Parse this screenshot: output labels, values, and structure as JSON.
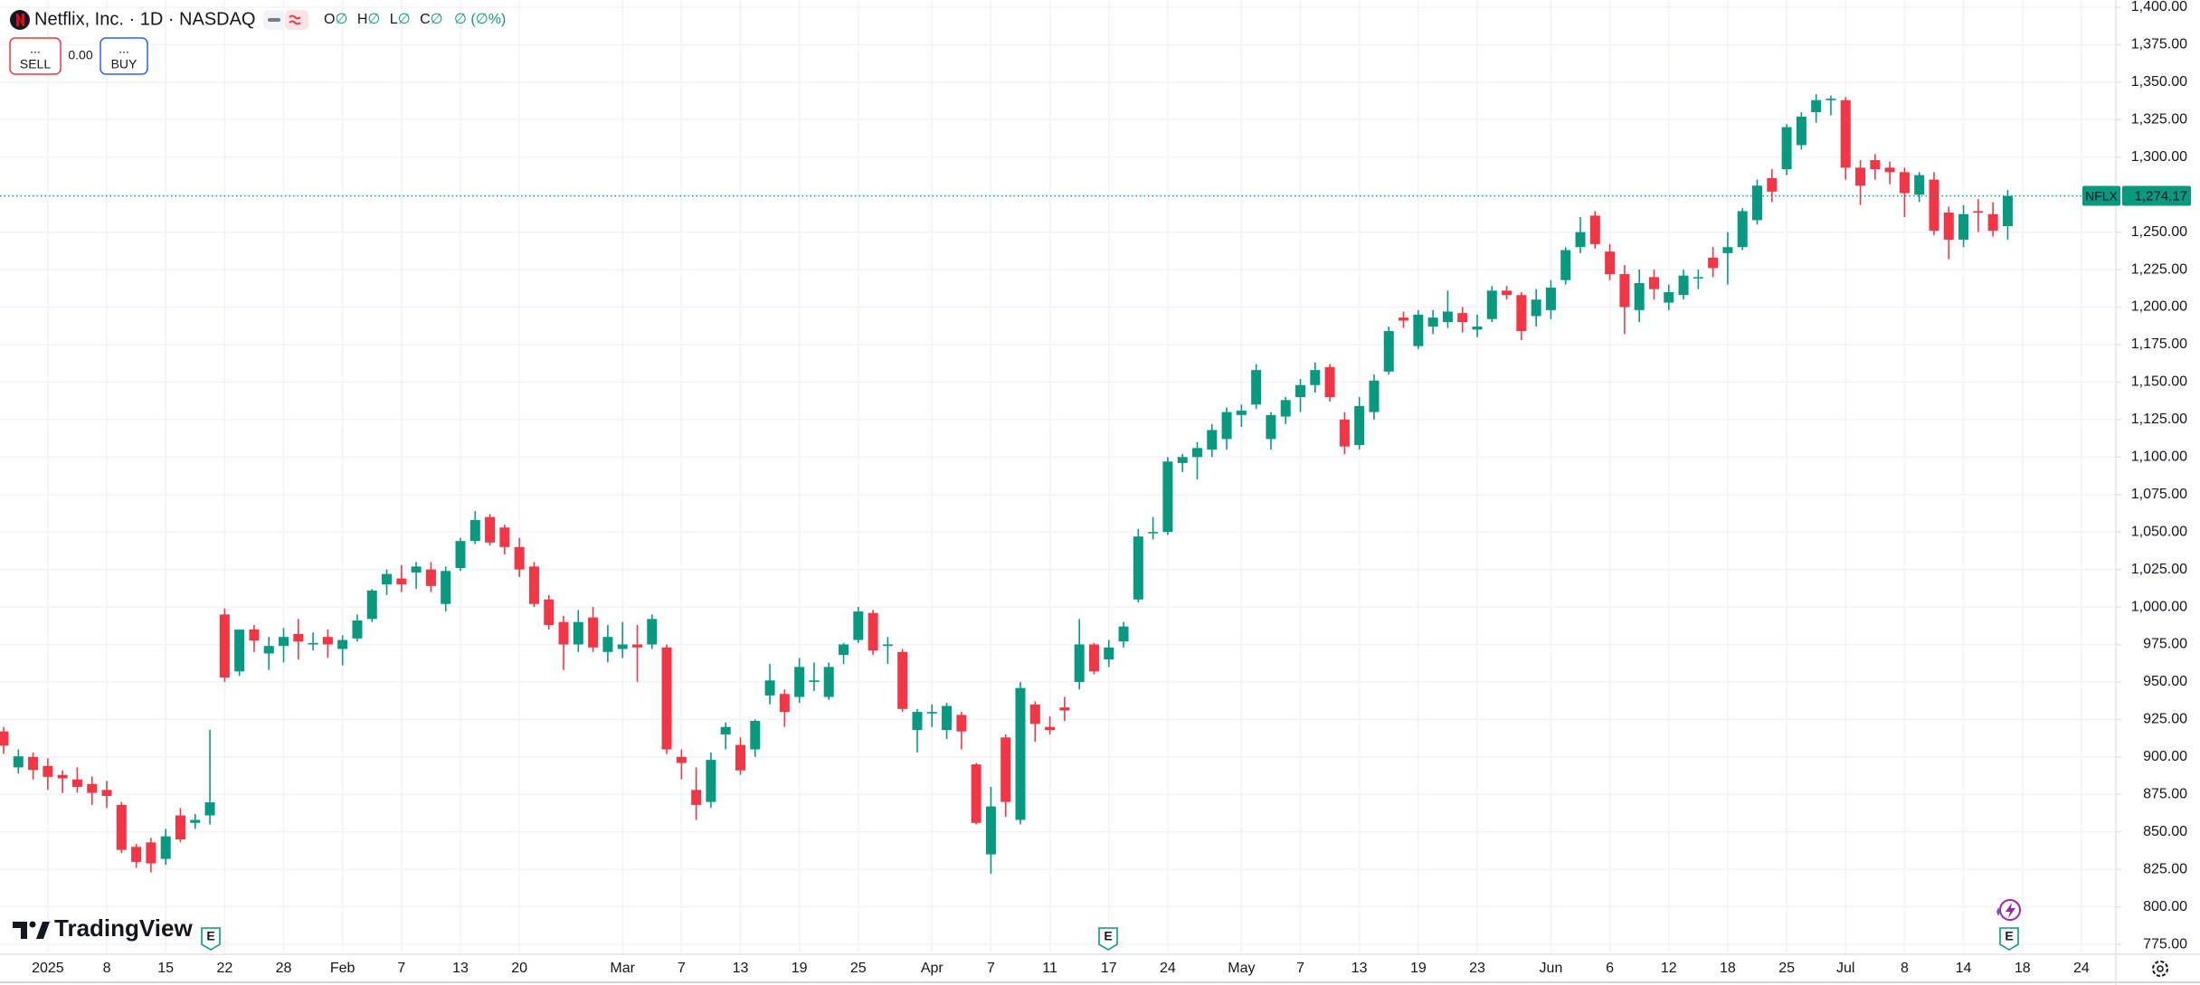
{
  "header": {
    "title": "Netflix, Inc. · 1D · NASDAQ",
    "ohlc_labels": [
      "O",
      "H",
      "L",
      "C"
    ],
    "ohlc_value": "∅",
    "change": "∅ (∅%)",
    "sell_price": "...",
    "sell": "SELL",
    "spread": "0.00",
    "buy_price": "...",
    "buy": "BUY",
    "brand": "TradingView"
  },
  "chart_data": {
    "type": "candlestick",
    "up_color": "#089981",
    "down_color": "#f23645",
    "grid": true,
    "symbol": "NFLX",
    "last_price": {
      "value": 1274.17,
      "label": "1,274.17"
    },
    "earnings": [
      "E",
      "E",
      "E"
    ],
    "ylim": [
      768.4,
      1404.8
    ],
    "yticks": [
      {
        "value": 775,
        "label": "775.00"
      },
      {
        "value": 800,
        "label": "800.00"
      },
      {
        "value": 825,
        "label": "825.00"
      },
      {
        "value": 850,
        "label": "850.00"
      },
      {
        "value": 875,
        "label": "875.00"
      },
      {
        "value": 900,
        "label": "900.00"
      },
      {
        "value": 925,
        "label": "925.00"
      },
      {
        "value": 950,
        "label": "950.00"
      },
      {
        "value": 975,
        "label": "975.00"
      },
      {
        "value": 1000,
        "label": "1,000.00"
      },
      {
        "value": 1025,
        "label": "1,025.00"
      },
      {
        "value": 1050,
        "label": "1,050.00"
      },
      {
        "value": 1075,
        "label": "1,075.00"
      },
      {
        "value": 1100,
        "label": "1,100.00"
      },
      {
        "value": 1125,
        "label": "1,125.00"
      },
      {
        "value": 1150,
        "label": "1,150.00"
      },
      {
        "value": 1175,
        "label": "1,175.00"
      },
      {
        "value": 1200,
        "label": "1,200.00"
      },
      {
        "value": 1225,
        "label": "1,225.00"
      },
      {
        "value": 1250,
        "label": "1,250.00"
      },
      {
        "value": 1275,
        "label": "1,275.00"
      },
      {
        "value": 1300,
        "label": "1,300.00"
      },
      {
        "value": 1325,
        "label": "1,325.00"
      },
      {
        "value": 1350,
        "label": "1,350.00"
      },
      {
        "value": 1375,
        "label": "1,375.00"
      },
      {
        "value": 1400,
        "label": "1,400.00"
      }
    ],
    "categories": [
      null,
      null,
      null,
      "2025",
      null,
      null,
      null,
      "8",
      null,
      null,
      null,
      "15",
      null,
      null,
      null,
      "22",
      null,
      null,
      null,
      "28",
      null,
      null,
      null,
      "Feb",
      null,
      null,
      null,
      "7",
      null,
      null,
      null,
      "13",
      null,
      null,
      null,
      "20",
      null,
      null,
      null,
      null,
      null,
      null,
      "Mar",
      null,
      null,
      null,
      "7",
      null,
      null,
      null,
      "13",
      null,
      null,
      null,
      "19",
      null,
      null,
      null,
      "25",
      null,
      null,
      null,
      null,
      "Apr",
      null,
      null,
      null,
      "7",
      null,
      null,
      null,
      "11",
      null,
      null,
      null,
      "17",
      null,
      null,
      null,
      "24",
      null,
      null,
      null,
      null,
      "May",
      null,
      null,
      null,
      "7",
      null,
      null,
      null,
      "13",
      null,
      null,
      null,
      "19",
      null,
      null,
      null,
      "23",
      null,
      null,
      null,
      null,
      "Jun",
      null,
      null,
      null,
      "6",
      null,
      null,
      null,
      "12",
      null,
      null,
      null,
      "18",
      null,
      null,
      null,
      "25",
      null,
      null,
      null,
      "Jul",
      null,
      null,
      null,
      "8",
      null,
      null,
      null,
      "14",
      null,
      null,
      null,
      "18",
      null,
      null,
      null,
      "24",
      null
    ],
    "open": [
      917,
      893,
      900,
      894,
      888,
      885,
      882,
      878,
      868,
      840,
      843,
      832,
      861,
      856,
      861,
      995,
      957,
      985,
      969,
      974,
      982,
      975,
      980,
      972,
      979,
      992,
      1015,
      1019,
      1023,
      1025,
      1002,
      1026,
      1044,
      1060,
      1053,
      1040,
      1027,
      1005,
      990,
      975,
      993,
      970,
      972,
      975,
      975,
      973,
      900,
      878,
      870,
      915,
      908,
      905,
      941,
      942,
      940,
      950,
      940,
      968,
      978,
      996,
      974,
      970,
      918,
      929,
      918,
      928,
      895,
      835,
      913,
      858,
      935,
      920,
      933,
      950,
      975,
      965,
      977,
      1005,
      1050,
      1050,
      1096,
      1100,
      1105,
      1112,
      1128,
      1135,
      1112,
      1127,
      1140,
      1148,
      1160,
      1125,
      1108,
      1130,
      1157,
      1193,
      1174,
      1187,
      1190,
      1196,
      1185,
      1192,
      1211,
      1208,
      1194,
      1198,
      1218,
      1240,
      1261,
      1237,
      1222,
      1198,
      1220,
      1203,
      1208,
      1220,
      1233,
      1236,
      1240,
      1258,
      1286,
      1292,
      1308,
      1330,
      1338,
      1338,
      1293,
      1298,
      1293,
      1290,
      1275,
      1285,
      1263,
      1245,
      1264,
      1262,
      1254,
      null,
      null,
      null,
      null,
      null,
      null
    ],
    "high": [
      920,
      905,
      903,
      899,
      891,
      893,
      887,
      884,
      870,
      842,
      846,
      852,
      866,
      862,
      918,
      999,
      985,
      988,
      980,
      986,
      992,
      983,
      985,
      981,
      995,
      1012,
      1025,
      1028,
      1030,
      1030,
      1027,
      1046,
      1064,
      1062,
      1055,
      1046,
      1030,
      1008,
      994,
      998,
      1000,
      988,
      990,
      988,
      995,
      975,
      905,
      893,
      903,
      923,
      913,
      925,
      962,
      945,
      966,
      963,
      963,
      976,
      1000,
      998,
      980,
      972,
      932,
      935,
      936,
      930,
      896,
      880,
      915,
      950,
      937,
      927,
      940,
      992,
      976,
      978,
      990,
      1052,
      1060,
      1100,
      1102,
      1110,
      1122,
      1133,
      1135,
      1162,
      1130,
      1140,
      1152,
      1163,
      1162,
      1130,
      1140,
      1155,
      1187,
      1197,
      1198,
      1198,
      1211,
      1200,
      1195,
      1214,
      1214,
      1210,
      1212,
      1218,
      1240,
      1260,
      1264,
      1242,
      1228,
      1225,
      1225,
      1215,
      1225,
      1225,
      1240,
      1250,
      1266,
      1285,
      1292,
      1322,
      1330,
      1342,
      1341,
      1340,
      1298,
      1302,
      1297,
      1293,
      1290,
      1290,
      1267,
      1268,
      1272,
      1270,
      1278,
      null,
      null,
      null,
      null,
      null,
      null
    ],
    "low": [
      902,
      889,
      885,
      878,
      876,
      876,
      868,
      866,
      836,
      826,
      823,
      828,
      843,
      852,
      855,
      950,
      954,
      970,
      958,
      963,
      965,
      971,
      966,
      961,
      977,
      990,
      1008,
      1010,
      1012,
      1010,
      997,
      1024,
      1042,
      1041,
      1035,
      1020,
      1000,
      985,
      958,
      970,
      970,
      963,
      966,
      950,
      972,
      902,
      885,
      858,
      866,
      905,
      888,
      900,
      935,
      920,
      936,
      944,
      938,
      962,
      976,
      968,
      962,
      930,
      903,
      920,
      912,
      905,
      855,
      822,
      860,
      855,
      910,
      915,
      924,
      945,
      955,
      960,
      973,
      1003,
      1045,
      1048,
      1090,
      1085,
      1100,
      1105,
      1120,
      1132,
      1105,
      1122,
      1130,
      1143,
      1137,
      1102,
      1105,
      1125,
      1155,
      1186,
      1172,
      1182,
      1186,
      1183,
      1180,
      1190,
      1205,
      1178,
      1187,
      1192,
      1215,
      1236,
      1239,
      1218,
      1182,
      1190,
      1205,
      1198,
      1205,
      1212,
      1220,
      1215,
      1238,
      1255,
      1270,
      1288,
      1305,
      1323,
      1328,
      1285,
      1268,
      1285,
      1282,
      1260,
      1270,
      1248,
      1232,
      1240,
      1250,
      1247,
      1245,
      null,
      null,
      null,
      null,
      null,
      null
    ],
    "close": [
      907.5,
      900.4,
      891.3,
      886.7,
      885.7,
      880,
      876,
      874,
      838,
      830,
      829,
      847,
      845,
      858,
      869.7,
      953,
      984.9,
      977.6,
      974,
      980,
      977,
      976,
      975,
      978,
      991,
      1011,
      1022,
      1015,
      1027,
      1014,
      1024,
      1044,
      1058,
      1043,
      1040,
      1025,
      1002,
      988,
      975,
      990,
      973,
      980,
      975,
      973,
      992,
      905,
      896,
      868,
      898,
      920,
      891,
      924,
      951,
      930,
      960,
      951,
      960,
      975,
      997,
      971,
      975,
      932,
      930,
      930,
      934,
      917,
      856,
      867,
      870,
      946,
      922,
      918,
      931,
      975,
      957,
      973,
      987,
      1047,
      1050,
      1097,
      1100,
      1106,
      1118,
      1130,
      1131,
      1158,
      1128,
      1138,
      1148,
      1158,
      1140,
      1107,
      1134,
      1151,
      1184,
      1191,
      1195,
      1193,
      1197,
      1190,
      1187,
      1211,
      1208,
      1184,
      1205,
      1213,
      1238,
      1250,
      1242,
      1222,
      1200,
      1216,
      1212,
      1210,
      1221,
      1220,
      1226,
      1240,
      1264,
      1281,
      1277,
      1320,
      1327,
      1338,
      1339,
      1293,
      1281,
      1292,
      1290,
      1276,
      1288,
      1251,
      1245,
      1262,
      1263,
      1251,
      1274.17,
      null,
      null,
      null,
      null,
      null,
      null
    ]
  }
}
